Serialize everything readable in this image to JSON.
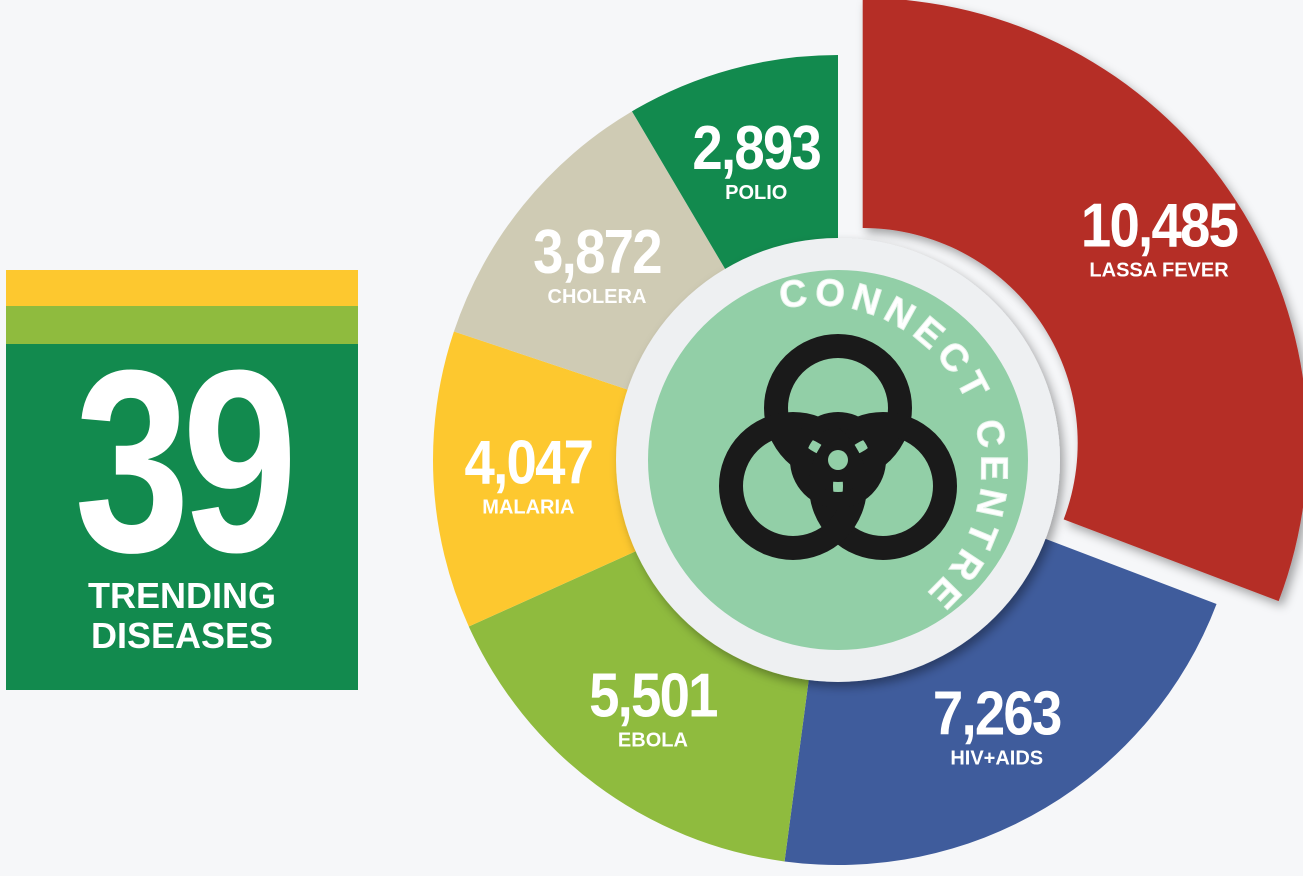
{
  "summary": {
    "count": 39,
    "label": "TRENDING DISEASES"
  },
  "chart_data": {
    "type": "donut",
    "categories": [
      "LASSA FEVER",
      "HIV+AIDS",
      "EBOLA",
      "MALARIA",
      "CHOLERA",
      "POLIO"
    ],
    "values": [
      10485,
      7263,
      5501,
      4047,
      3872,
      2893
    ],
    "value_labels": [
      "10,485",
      "7,263",
      "5,501",
      "4,047",
      "3,872",
      "2,893"
    ],
    "colors": [
      "#b52d28",
      "#3f5c9c",
      "#8fbb3e",
      "#fdc82f",
      "#cfcbb4",
      "#128a4e"
    ],
    "exploded": "LASSA FEVER",
    "center_label": "CONNECT CENTRE"
  }
}
